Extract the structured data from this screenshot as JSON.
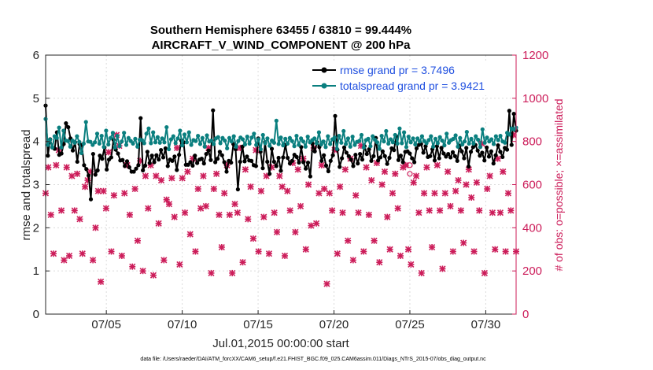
{
  "chart_data": {
    "type": "line",
    "title": "Southern Hemisphere 63455 / 63810 = 99.444%",
    "subtitle": "AIRCRAFT_V_WIND_COMPONENT @ 200 hPa",
    "xlabel": "Jul.01,2015 00:00:00 start",
    "ylabel": "rmse and totalspread",
    "ylabel_right": "# of obs: o=possible; ×=assimilated",
    "xlim": [
      1,
      32
    ],
    "ylim": [
      0,
      6
    ],
    "ylim_right": [
      0,
      1200
    ],
    "x_ticks": [
      5,
      10,
      15,
      20,
      25,
      30
    ],
    "x_tick_labels": [
      "07/05",
      "07/10",
      "07/15",
      "07/20",
      "07/25",
      "07/30"
    ],
    "y_ticks": [
      0,
      1,
      2,
      3,
      4,
      5,
      6
    ],
    "y_tick_labels": [
      "0",
      "1",
      "2",
      "3",
      "4",
      "5",
      "6"
    ],
    "y_right_ticks": [
      0,
      200,
      400,
      600,
      800,
      1000,
      1200
    ],
    "y_right_tick_labels": [
      "0",
      "200",
      "400",
      "600",
      "800",
      "1000",
      "1200"
    ],
    "grid": true,
    "legend_position": "top-right",
    "series": [
      {
        "name": "rmse grand pr = 3.7496",
        "color": "#000000",
        "marker": "dot",
        "axis": "left",
        "values": [
          4.83,
          3.67,
          4.05,
          3.86,
          3.83,
          4.21,
          3.69,
          3.72,
          3.94,
          4.42,
          4.33,
          4.07,
          3.79,
          3.98,
          3.53,
          3.94,
          3.92,
          3.45,
          3.36,
          3.21,
          2.66,
          3.71,
          3.23,
          3.33,
          3.67,
          3.6,
          3.86,
          3.35,
          3.58,
          3.63,
          4.04,
          3.81,
          3.72,
          3.56,
          3.57,
          3.43,
          3.54,
          3.4,
          3.3,
          3.3,
          3.37,
          3.45,
          4.54,
          3.33,
          3.44,
          3.76,
          3.5,
          3.67,
          3.52,
          3.68,
          3.58,
          3.8,
          3.63,
          3.84,
          3.43,
          3.58,
          3.55,
          3.65,
          3.34,
          3.69,
          4.02,
          3.98,
          3.46,
          3.46,
          3.52,
          3.44,
          3.67,
          3.5,
          3.58,
          3.6,
          3.49,
          3.71,
          3.79,
          3.57,
          4.72,
          3.52,
          3.6,
          3.76,
          3.68,
          3.52,
          3.3,
          3.55,
          3.51,
          3.94,
          3.82,
          2.89,
          3.53,
          3.88,
          3.54,
          3.65,
          3.56,
          3.55,
          3.45,
          3.43,
          4.07,
          3.76,
          3.38,
          3.98,
          3.53,
          3.25,
          3.83,
          3.53,
          3.43,
          3.62,
          3.32,
          3.63,
          3.92,
          3.62,
          3.49,
          3.55,
          3.69,
          3.64,
          3.51,
          3.87,
          3.52,
          3.37,
          3.51,
          3.19,
          3.95,
          3.77,
          3.98,
          3.87,
          3.55,
          3.68,
          3.44,
          3.31,
          3.55,
          3.68,
          4.59,
          3.81,
          3.41,
          3.61,
          3.86,
          3.74,
          3.66,
          3.58,
          3.43,
          3.69,
          3.49,
          3.71,
          3.58,
          3.89,
          3.71,
          3.82,
          3.55,
          3.66,
          4.08,
          3.56,
          3.63,
          3.77,
          3.66,
          3.48,
          3.62,
          3.84,
          3.8,
          4.12,
          3.57,
          3.67,
          3.52,
          3.76,
          3.77,
          3.72,
          3.61,
          3.52,
          3.84,
          3.92,
          3.94,
          3.74,
          3.89,
          3.64,
          3.66,
          3.82,
          3.56,
          3.89,
          3.61,
          3.85,
          3.72,
          3.65,
          3.71,
          3.63,
          3.75,
          3.66,
          3.55,
          3.9,
          3.77,
          3.61,
          3.85,
          3.42,
          3.76,
          3.87,
          3.92,
          3.79,
          3.67,
          3.74,
          3.56,
          3.86,
          3.65,
          3.77,
          3.49,
          3.68,
          3.91,
          3.76,
          3.64,
          3.85,
          3.81,
          4.71,
          3.92,
          4.64,
          4.25
        ]
      },
      {
        "name": "totalspread grand pr = 3.9421",
        "color": "#0a7f7f",
        "marker": "dot",
        "axis": "left",
        "values": [
          4.52,
          3.92,
          4.04,
          3.86,
          4.12,
          4.08,
          4.32,
          3.86,
          4.25,
          4.02,
          4.01,
          3.88,
          4.02,
          3.97,
          4.12,
          3.99,
          3.73,
          3.95,
          4.45,
          4.0,
          3.99,
          3.92,
          3.98,
          4.18,
          3.95,
          4.13,
          3.87,
          4.25,
          3.93,
          4.08,
          4.2,
          3.86,
          4.13,
          3.89,
          4.0,
          4.2,
          3.92,
          4.08,
          4.01,
          3.95,
          4.06,
          3.88,
          4.04,
          4.03,
          3.96,
          4.18,
          4.3,
          3.96,
          4.21,
          3.98,
          4.1,
          3.97,
          4.07,
          3.98,
          4.33,
          3.82,
          4.05,
          4.12,
          3.96,
          4.07,
          4.25,
          3.91,
          4.16,
          3.98,
          4.21,
          3.92,
          4.03,
          4.01,
          4.13,
          3.94,
          4.08,
          3.88,
          4.14,
          4.0,
          4.02,
          3.94,
          4.07,
          4.1,
          3.96,
          4.08,
          4.02,
          3.84,
          4.08,
          4.0,
          4.12,
          3.88,
          4.01,
          4.09,
          4.05,
          3.93,
          4.11,
          3.95,
          4.09,
          4.18,
          3.92,
          4.05,
          3.82,
          4.15,
          3.96,
          4.07,
          3.9,
          4.02,
          3.97,
          4.48,
          3.94,
          4.09,
          3.91,
          4.06,
          3.95,
          4.08,
          4.01,
          3.89,
          4.13,
          3.92,
          4.07,
          4.0,
          3.88,
          4.11,
          3.98,
          4.03,
          4.07,
          3.96,
          4.21,
          3.93,
          4.0,
          3.87,
          4.12,
          3.94,
          4.05,
          4.09,
          3.83,
          4.13,
          3.97,
          4.24,
          3.94,
          4.07,
          3.88,
          4.11,
          3.92,
          3.99,
          4.01,
          4.15,
          3.86,
          4.03,
          4.06,
          3.89,
          4.12,
          4.04,
          3.98,
          3.83,
          4.13,
          4.0,
          4.24,
          3.95,
          4.05,
          3.98,
          4.15,
          3.95,
          4.3,
          3.96,
          4.21,
          3.87,
          4.11,
          3.98,
          4.07,
          3.93,
          4.07,
          4.0,
          4.12,
          4.01,
          3.96,
          4.03,
          4.12,
          3.88,
          4.06,
          3.96,
          4.1,
          4.02,
          3.91,
          4.18,
          3.97,
          4.03,
          4.06,
          4.14,
          3.88,
          4.08,
          3.93,
          4.0,
          4.22,
          3.95,
          4.06,
          3.95,
          4.12,
          4.04,
          3.87,
          4.28,
          3.97,
          4.09,
          4.0,
          4.05,
          3.94,
          4.12,
          4.03,
          4.13,
          4.0,
          3.97,
          4.2,
          4.16,
          4.3,
          4.28,
          4.32
        ]
      }
    ],
    "obs_possible": {
      "name": "possible",
      "marker": "o",
      "color": "#cc1d5a",
      "axis": "right",
      "points": [
        [
          25.0,
          690
        ],
        [
          25.0,
          650
        ]
      ]
    },
    "obs_assimilated": {
      "name": "assimilated",
      "marker": "×",
      "color": "#cc1d5a",
      "axis": "right",
      "values": [
        560,
        680,
        460,
        280,
        690,
        760,
        480,
        250,
        680,
        270,
        640,
        480,
        650,
        440,
        280,
        590,
        620,
        660,
        250,
        400,
        570,
        150,
        570,
        490,
        750,
        290,
        550,
        830,
        780,
        270,
        560,
        690,
        460,
        220,
        580,
        340,
        710,
        200,
        640,
        490,
        690,
        180,
        640,
        420,
        620,
        250,
        530,
        510,
        630,
        450,
        770,
        230,
        630,
        470,
        660,
        370,
        720,
        290,
        580,
        490,
        640,
        500,
        770,
        190,
        580,
        650,
        460,
        310,
        560,
        690,
        460,
        190,
        510,
        470,
        770,
        240,
        670,
        440,
        590,
        350,
        760,
        290,
        570,
        450,
        640,
        280,
        680,
        470,
        380,
        640,
        590,
        270,
        570,
        480,
        700,
        380,
        670,
        500,
        720,
        300,
        600,
        410,
        770,
        420,
        560,
        690,
        580,
        140,
        560,
        480,
        760,
        280,
        590,
        470,
        670,
        340,
        720,
        250,
        550,
        470,
        780,
        290,
        680,
        460,
        620,
        340,
        700,
        240,
        600,
        660,
        450,
        300,
        560,
        650,
        490,
        270,
        680,
        690,
        300,
        230,
        610,
        640,
        470,
        190,
        560,
        680,
        480,
        310,
        560,
        690,
        480,
        210,
        560,
        660,
        500,
        290,
        570,
        620,
        480,
        330,
        600,
        670,
        540,
        290,
        610,
        480,
        790,
        190,
        580,
        640,
        470,
        300,
        720,
        470,
        660,
        290,
        560,
        480,
        830,
        290
      ]
    }
  }
}
